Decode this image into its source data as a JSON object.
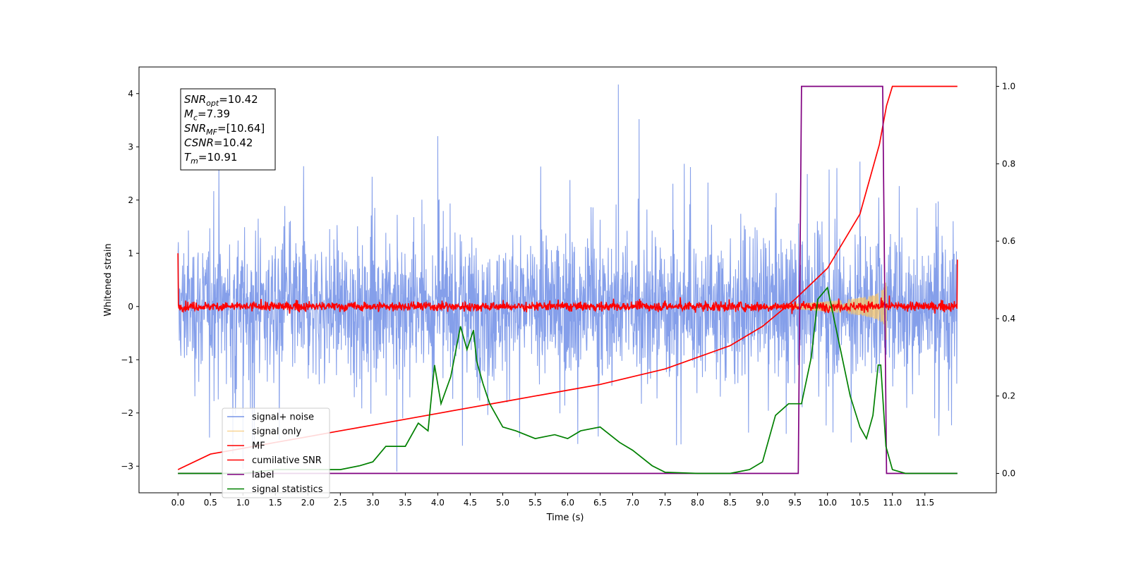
{
  "chart_data": {
    "type": "line",
    "title": "",
    "xlabel": "Time (s)",
    "ylabel": "Whitened strain",
    "ylabel_right": "",
    "xlim": [
      -0.6,
      12.6
    ],
    "ylim": [
      -3.5,
      4.5
    ],
    "ylim_right": [
      -0.05,
      1.05
    ],
    "grid": false,
    "legend_position": "lower-left",
    "x_ticks": [
      "0.0",
      "0.5",
      "1.0",
      "1.5",
      "2.0",
      "2.5",
      "3.0",
      "3.5",
      "4.0",
      "4.5",
      "5.0",
      "5.5",
      "6.0",
      "6.5",
      "7.0",
      "7.5",
      "8.0",
      "8.5",
      "9.0",
      "9.5",
      "10.0",
      "10.5",
      "11.0",
      "11.5"
    ],
    "y_ticks_left": [
      "−3",
      "−2",
      "−1",
      "0",
      "1",
      "2",
      "3",
      "4"
    ],
    "y_ticks_right": [
      "0.0",
      "0.2",
      "0.4",
      "0.6",
      "0.8",
      "1.0"
    ],
    "annotation": {
      "lines": [
        {
          "base": "SNR",
          "sub": "opt",
          "value": "=10.42"
        },
        {
          "base": "M",
          "sub": "c",
          "value": "=7.39"
        },
        {
          "base": "SNR",
          "sub": "MF",
          "value": "=[10.64]"
        },
        {
          "base": "CSNR",
          "sub": "",
          "value": "=10.42"
        },
        {
          "base": "T",
          "sub": "m",
          "value": "=10.91"
        }
      ]
    },
    "series": [
      {
        "name": "signal+ noise",
        "color": "#7895e8",
        "axis": "left",
        "style": "noise",
        "x_range": [
          0,
          12.0
        ],
        "typical_range": [
          -1.5,
          1.5
        ],
        "extremes": [
          -3.1,
          4.17
        ]
      },
      {
        "name": "signal only",
        "color": "#f6c46a",
        "axis": "left",
        "style": "chirp",
        "x_range": [
          9.0,
          10.91
        ],
        "peak_amplitude": 0.65
      },
      {
        "name": "MF",
        "color": "#ff0000",
        "axis": "left",
        "style": "noise",
        "x_range": [
          0,
          12.0
        ],
        "typical_range": [
          -0.1,
          0.1
        ],
        "start_value": 1.0,
        "end_value": 0.88
      },
      {
        "name": "cumilative SNR",
        "color": "#ff0000",
        "axis": "right",
        "x": [
          0,
          0.5,
          1,
          1.5,
          2,
          2.5,
          3,
          3.5,
          4,
          4.5,
          5,
          5.5,
          6,
          6.5,
          7,
          7.5,
          8,
          8.5,
          9,
          9.5,
          10,
          10.5,
          10.8,
          10.91,
          11.0,
          11.5,
          12.0
        ],
        "y": [
          0.01,
          0.05,
          0.065,
          0.08,
          0.095,
          0.11,
          0.125,
          0.14,
          0.155,
          0.17,
          0.185,
          0.2,
          0.215,
          0.23,
          0.25,
          0.27,
          0.3,
          0.33,
          0.38,
          0.45,
          0.53,
          0.67,
          0.85,
          0.95,
          1.0,
          1.0,
          1.0
        ]
      },
      {
        "name": "label",
        "color": "#800080",
        "axis": "right",
        "x": [
          0,
          9.55,
          9.6,
          10.85,
          10.91,
          12.0
        ],
        "y": [
          0,
          0,
          1,
          1,
          0,
          0
        ]
      },
      {
        "name": "signal statistics",
        "color": "#008000",
        "axis": "right",
        "x": [
          0,
          1.0,
          1.5,
          2.0,
          2.5,
          2.8,
          3.0,
          3.2,
          3.5,
          3.7,
          3.85,
          3.95,
          4.05,
          4.2,
          4.35,
          4.45,
          4.55,
          4.6,
          4.7,
          4.8,
          5.0,
          5.2,
          5.5,
          5.8,
          6.0,
          6.2,
          6.5,
          6.8,
          7.0,
          7.3,
          7.5,
          8.0,
          8.5,
          8.8,
          9.0,
          9.2,
          9.4,
          9.6,
          9.75,
          9.85,
          10.0,
          10.2,
          10.35,
          10.5,
          10.6,
          10.7,
          10.78,
          10.82,
          10.9,
          11.0,
          11.2,
          12.0
        ],
        "y": [
          0.0,
          0.0,
          0.01,
          0.01,
          0.01,
          0.02,
          0.03,
          0.07,
          0.07,
          0.13,
          0.11,
          0.28,
          0.18,
          0.25,
          0.38,
          0.32,
          0.37,
          0.29,
          0.23,
          0.18,
          0.12,
          0.11,
          0.09,
          0.1,
          0.09,
          0.11,
          0.12,
          0.08,
          0.06,
          0.02,
          0.003,
          0.0,
          0.0,
          0.01,
          0.03,
          0.15,
          0.18,
          0.18,
          0.3,
          0.45,
          0.48,
          0.32,
          0.2,
          0.12,
          0.09,
          0.15,
          0.28,
          0.28,
          0.07,
          0.01,
          0.0,
          0.0
        ]
      }
    ]
  }
}
